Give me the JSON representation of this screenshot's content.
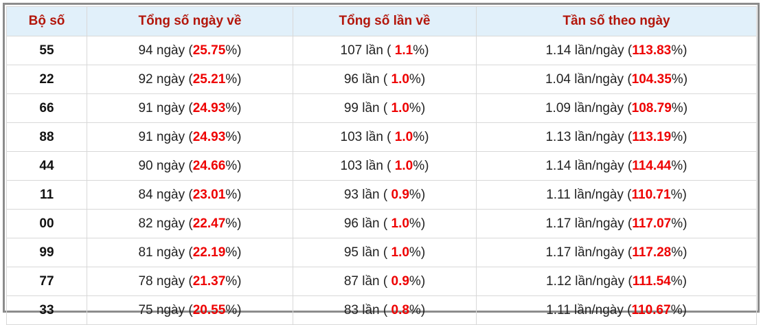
{
  "table": {
    "header": [
      "Bộ số",
      "Tổng số ngày về",
      "Tổng số lần về",
      "Tần số theo ngày"
    ],
    "rows": [
      [
        "55",
        [
          "94 ngày (",
          "25.75",
          "%)"
        ],
        [
          "107 lần ( ",
          "1.1",
          "%)"
        ],
        [
          "1.14 lần/ngày (",
          "113.83",
          "%)"
        ]
      ],
      [
        "22",
        [
          "92 ngày (",
          "25.21",
          "%)"
        ],
        [
          "96 lần ( ",
          "1.0",
          "%)"
        ],
        [
          "1.04 lần/ngày (",
          "104.35",
          "%)"
        ]
      ],
      [
        "66",
        [
          "91 ngày (",
          "24.93",
          "%)"
        ],
        [
          "99 lần ( ",
          "1.0",
          "%)"
        ],
        [
          "1.09 lần/ngày (",
          "108.79",
          "%)"
        ]
      ],
      [
        "88",
        [
          "91 ngày (",
          "24.93",
          "%)"
        ],
        [
          "103 lần ( ",
          "1.0",
          "%)"
        ],
        [
          "1.13 lần/ngày (",
          "113.19",
          "%)"
        ]
      ],
      [
        "44",
        [
          "90 ngày (",
          "24.66",
          "%)"
        ],
        [
          "103 lần ( ",
          "1.0",
          "%)"
        ],
        [
          "1.14 lần/ngày (",
          "114.44",
          "%)"
        ]
      ],
      [
        "11",
        [
          "84 ngày (",
          "23.01",
          "%)"
        ],
        [
          "93 lần ( ",
          "0.9",
          "%)"
        ],
        [
          "1.11 lần/ngày (",
          "110.71",
          "%)"
        ]
      ],
      [
        "00",
        [
          "82 ngày (",
          "22.47",
          "%)"
        ],
        [
          "96 lần ( ",
          "1.0",
          "%)"
        ],
        [
          "1.17 lần/ngày (",
          "117.07",
          "%)"
        ]
      ],
      [
        "99",
        [
          "81 ngày (",
          "22.19",
          "%)"
        ],
        [
          "95 lần ( ",
          "1.0",
          "%)"
        ],
        [
          "1.17 lần/ngày (",
          "117.28",
          "%)"
        ]
      ],
      [
        "77",
        [
          "78 ngày (",
          "21.37",
          "%)"
        ],
        [
          "87 lần ( ",
          "0.9",
          "%)"
        ],
        [
          "1.12 lần/ngày (",
          "111.54",
          "%)"
        ]
      ],
      [
        "33",
        [
          "75 ngày (",
          "20.55",
          "%)"
        ],
        [
          "83 lần ( ",
          "0.8",
          "%)"
        ],
        [
          "1.11 lần/ngày (",
          "110.67",
          "%)"
        ]
      ]
    ]
  }
}
